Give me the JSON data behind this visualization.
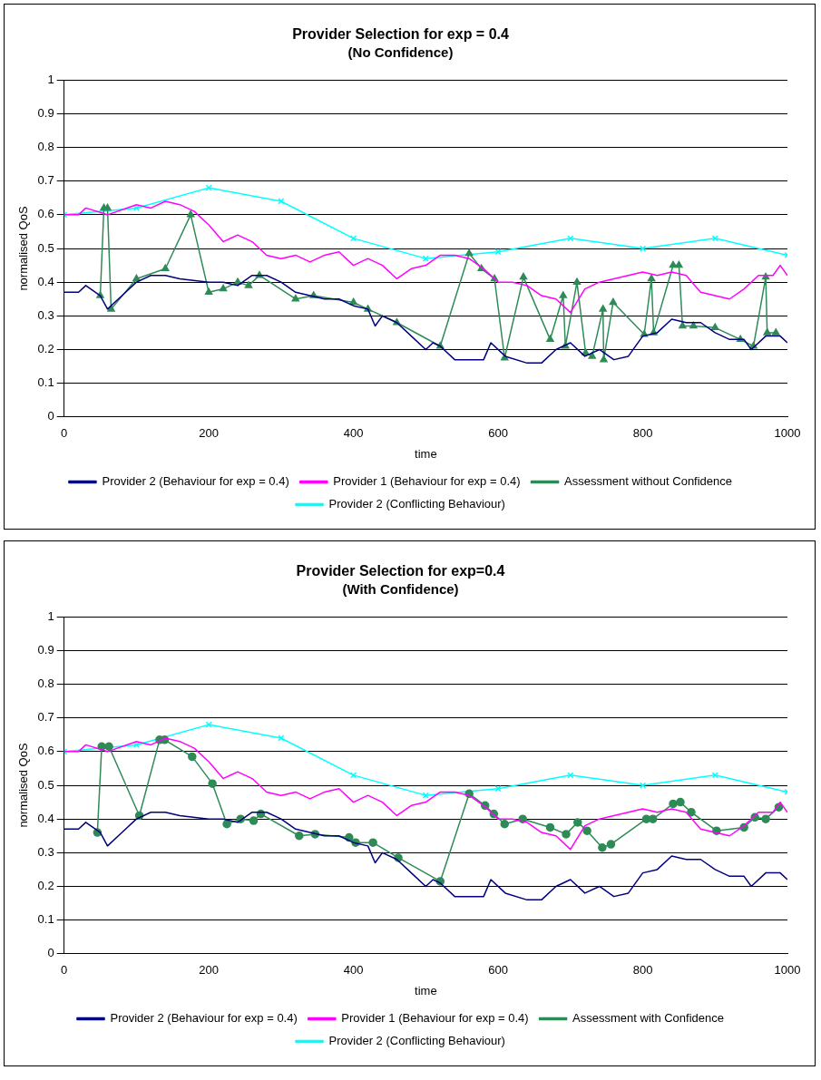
{
  "chart_data": [
    {
      "type": "line",
      "title": "Provider Selection for exp = 0.4",
      "subtitle": "(No Confidence)",
      "xlabel": "time",
      "ylabel": "normalised QoS",
      "xlim": [
        0,
        1000
      ],
      "xticks": [
        0,
        200,
        400,
        600,
        800,
        1000
      ],
      "ylim": [
        0,
        1
      ],
      "yticks": [
        0,
        0.1,
        0.2,
        0.3,
        0.4,
        0.5,
        0.6,
        0.7,
        0.8,
        0.9,
        1
      ],
      "grid": "y",
      "legend": "bottom",
      "series": [
        {
          "name": "Provider 2 (Behaviour for exp = 0.4)",
          "color": "#000080",
          "marker": "none",
          "x": [
            0,
            20,
            30,
            50,
            60,
            80,
            100,
            120,
            140,
            160,
            200,
            220,
            240,
            260,
            280,
            300,
            320,
            340,
            360,
            380,
            400,
            420,
            430,
            440,
            460,
            480,
            500,
            510,
            520,
            540,
            560,
            580,
            590,
            610,
            640,
            660,
            680,
            700,
            720,
            740,
            760,
            780,
            800,
            820,
            840,
            860,
            880,
            900,
            920,
            940,
            950,
            970,
            990,
            1000
          ],
          "values": [
            0.37,
            0.37,
            0.39,
            0.36,
            0.32,
            0.36,
            0.4,
            0.42,
            0.42,
            0.41,
            0.4,
            0.4,
            0.39,
            0.42,
            0.42,
            0.4,
            0.37,
            0.36,
            0.35,
            0.35,
            0.33,
            0.32,
            0.27,
            0.3,
            0.28,
            0.24,
            0.2,
            0.22,
            0.21,
            0.17,
            0.17,
            0.17,
            0.22,
            0.18,
            0.16,
            0.16,
            0.2,
            0.22,
            0.18,
            0.2,
            0.17,
            0.18,
            0.24,
            0.25,
            0.29,
            0.28,
            0.28,
            0.25,
            0.23,
            0.23,
            0.2,
            0.24,
            0.24,
            0.22
          ]
        },
        {
          "name": "Provider 1 (Behaviour for exp = 0.4)",
          "color": "#ff00ff",
          "marker": "none",
          "x": [
            0,
            20,
            30,
            60,
            100,
            120,
            140,
            160,
            180,
            200,
            220,
            240,
            260,
            280,
            300,
            320,
            340,
            360,
            380,
            400,
            420,
            440,
            460,
            480,
            500,
            520,
            540,
            560,
            580,
            600,
            620,
            640,
            660,
            680,
            700,
            720,
            740,
            760,
            780,
            800,
            820,
            840,
            860,
            880,
            900,
            920,
            940,
            960,
            980,
            990,
            1000
          ],
          "values": [
            0.6,
            0.6,
            0.62,
            0.6,
            0.63,
            0.62,
            0.64,
            0.63,
            0.61,
            0.57,
            0.52,
            0.54,
            0.52,
            0.48,
            0.47,
            0.48,
            0.46,
            0.48,
            0.49,
            0.45,
            0.47,
            0.45,
            0.41,
            0.44,
            0.45,
            0.48,
            0.48,
            0.47,
            0.44,
            0.4,
            0.4,
            0.39,
            0.36,
            0.35,
            0.31,
            0.38,
            0.4,
            0.41,
            0.42,
            0.43,
            0.42,
            0.43,
            0.42,
            0.37,
            0.36,
            0.35,
            0.38,
            0.42,
            0.42,
            0.45,
            0.42
          ]
        },
        {
          "name": "Assessment without Confidence",
          "color": "#2e8b57",
          "marker": "triangle",
          "x": [
            50,
            55,
            60,
            65,
            100,
            140,
            175,
            200,
            220,
            240,
            255,
            270,
            320,
            345,
            400,
            420,
            460,
            520,
            560,
            577,
            595,
            609,
            635,
            672,
            690,
            693,
            709,
            721,
            730,
            745,
            746,
            759,
            802,
            812,
            815,
            842,
            850,
            855,
            870,
            900,
            935,
            953,
            970,
            972,
            984
          ],
          "values": [
            0.36,
            0.62,
            0.62,
            0.32,
            0.41,
            0.44,
            0.6,
            0.37,
            0.38,
            0.4,
            0.39,
            0.42,
            0.35,
            0.36,
            0.34,
            0.32,
            0.28,
            0.21,
            0.485,
            0.44,
            0.41,
            0.175,
            0.415,
            0.23,
            0.36,
            0.21,
            0.4,
            0.19,
            0.18,
            0.32,
            0.17,
            0.34,
            0.245,
            0.41,
            0.25,
            0.45,
            0.45,
            0.27,
            0.27,
            0.265,
            0.23,
            0.21,
            0.415,
            0.25,
            0.25
          ]
        },
        {
          "name": "Provider 2 (Conflicting Behaviour)",
          "color": "#00ffff",
          "marker": "cross",
          "x": [
            0,
            100,
            200,
            300,
            400,
            500,
            600,
            700,
            800,
            900,
            1000
          ],
          "values": [
            0.6,
            0.62,
            0.68,
            0.64,
            0.53,
            0.47,
            0.49,
            0.53,
            0.5,
            0.53,
            0.48
          ]
        }
      ]
    },
    {
      "type": "line",
      "title": "Provider Selection for exp=0.4",
      "subtitle": "(With Confidence)",
      "xlabel": "time",
      "ylabel": "normalised QoS",
      "xlim": [
        0,
        1000
      ],
      "xticks": [
        0,
        200,
        400,
        600,
        800,
        1000
      ],
      "ylim": [
        0,
        1
      ],
      "yticks": [
        0,
        0.1,
        0.2,
        0.3,
        0.4,
        0.5,
        0.6,
        0.7,
        0.8,
        0.9,
        1
      ],
      "grid": "y",
      "legend": "bottom",
      "series": [
        {
          "name": "Provider 2 (Behaviour for exp = 0.4)",
          "color": "#000080",
          "marker": "none",
          "x": [
            0,
            20,
            30,
            50,
            60,
            80,
            100,
            120,
            140,
            160,
            200,
            220,
            240,
            260,
            280,
            300,
            320,
            340,
            360,
            380,
            400,
            420,
            430,
            440,
            460,
            480,
            500,
            510,
            520,
            540,
            560,
            580,
            590,
            610,
            640,
            660,
            680,
            700,
            720,
            740,
            760,
            780,
            800,
            820,
            840,
            860,
            880,
            900,
            920,
            940,
            950,
            970,
            990,
            1000
          ],
          "values": [
            0.37,
            0.37,
            0.39,
            0.36,
            0.32,
            0.36,
            0.4,
            0.42,
            0.42,
            0.41,
            0.4,
            0.4,
            0.39,
            0.42,
            0.42,
            0.4,
            0.37,
            0.36,
            0.35,
            0.35,
            0.33,
            0.32,
            0.27,
            0.3,
            0.28,
            0.24,
            0.2,
            0.22,
            0.21,
            0.17,
            0.17,
            0.17,
            0.22,
            0.18,
            0.16,
            0.16,
            0.2,
            0.22,
            0.18,
            0.2,
            0.17,
            0.18,
            0.24,
            0.25,
            0.29,
            0.28,
            0.28,
            0.25,
            0.23,
            0.23,
            0.2,
            0.24,
            0.24,
            0.22
          ]
        },
        {
          "name": "Provider 1 (Behaviour for exp = 0.4)",
          "color": "#ff00ff",
          "marker": "none",
          "x": [
            0,
            20,
            30,
            60,
            100,
            120,
            140,
            160,
            180,
            200,
            220,
            240,
            260,
            280,
            300,
            320,
            340,
            360,
            380,
            400,
            420,
            440,
            460,
            480,
            500,
            520,
            540,
            560,
            580,
            600,
            620,
            640,
            660,
            680,
            700,
            720,
            740,
            760,
            780,
            800,
            820,
            840,
            860,
            880,
            900,
            920,
            940,
            960,
            980,
            990,
            1000
          ],
          "values": [
            0.6,
            0.6,
            0.62,
            0.6,
            0.63,
            0.62,
            0.64,
            0.63,
            0.61,
            0.57,
            0.52,
            0.54,
            0.52,
            0.48,
            0.47,
            0.48,
            0.46,
            0.48,
            0.49,
            0.45,
            0.47,
            0.45,
            0.41,
            0.44,
            0.45,
            0.48,
            0.48,
            0.47,
            0.44,
            0.4,
            0.4,
            0.39,
            0.36,
            0.35,
            0.31,
            0.38,
            0.4,
            0.41,
            0.42,
            0.43,
            0.42,
            0.43,
            0.42,
            0.37,
            0.36,
            0.35,
            0.38,
            0.42,
            0.42,
            0.45,
            0.42
          ]
        },
        {
          "name": "Assessment with Confidence",
          "color": "#2e8b57",
          "marker": "circle",
          "x": [
            46,
            52,
            62,
            104,
            132,
            139,
            177,
            205,
            225,
            244,
            262,
            272,
            325,
            347,
            394,
            403,
            427,
            462,
            520,
            560,
            582,
            594,
            609,
            634,
            672,
            694,
            710,
            723,
            744,
            756,
            805,
            814,
            842,
            852,
            867,
            902,
            940,
            955,
            970,
            988
          ],
          "values": [
            0.36,
            0.615,
            0.615,
            0.41,
            0.635,
            0.635,
            0.585,
            0.505,
            0.385,
            0.4,
            0.395,
            0.415,
            0.35,
            0.355,
            0.345,
            0.33,
            0.33,
            0.285,
            0.215,
            0.475,
            0.44,
            0.415,
            0.385,
            0.4,
            0.375,
            0.355,
            0.39,
            0.365,
            0.315,
            0.325,
            0.4,
            0.4,
            0.445,
            0.45,
            0.42,
            0.365,
            0.375,
            0.405,
            0.4,
            0.435
          ]
        },
        {
          "name": "Provider 2 (Conflicting Behaviour)",
          "color": "#00ffff",
          "marker": "cross",
          "x": [
            0,
            100,
            200,
            300,
            400,
            500,
            600,
            700,
            800,
            900,
            1000
          ],
          "values": [
            0.6,
            0.62,
            0.68,
            0.64,
            0.53,
            0.47,
            0.49,
            0.53,
            0.5,
            0.53,
            0.48
          ]
        }
      ]
    }
  ]
}
